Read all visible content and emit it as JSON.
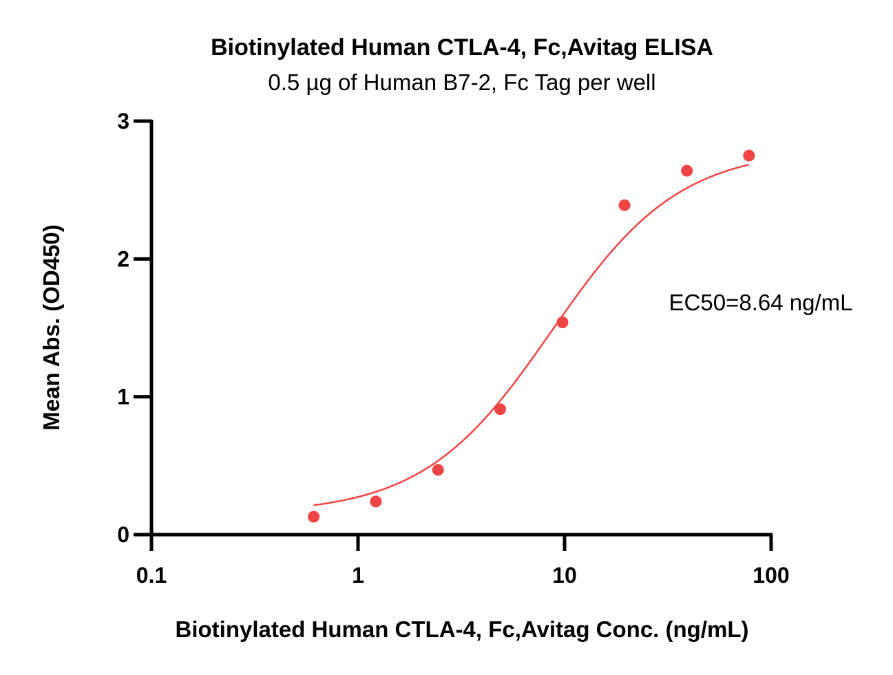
{
  "chart_data": {
    "type": "scatter",
    "title": "Biotinylated Human CTLA-4, Fc,Avitag ELISA",
    "subtitle": "0.5 µg of Human B7-2, Fc Tag per well",
    "xlabel": "Biotinylated Human CTLA-4, Fc,Avitag Conc. (ng/mL)",
    "ylabel": "Mean Abs. (OD450)",
    "x_scale": "log",
    "xlim": [
      0.1,
      100
    ],
    "ylim": [
      0,
      3
    ],
    "x_ticks": [
      0.1,
      1,
      10,
      100
    ],
    "x_tick_labels": [
      "0.1",
      "1",
      "10",
      "100"
    ],
    "y_ticks": [
      0,
      1,
      2,
      3
    ],
    "y_tick_labels": [
      "0",
      "1",
      "2",
      "3"
    ],
    "grid": false,
    "colors": {
      "series": "#ef4444",
      "axis": "#000000"
    },
    "series": [
      {
        "x": [
          0.61,
          1.22,
          2.44,
          4.88,
          9.77,
          19.5,
          39.1,
          78.1
        ],
        "y": [
          0.13,
          0.24,
          0.47,
          0.91,
          1.54,
          2.39,
          2.64,
          2.75
        ]
      }
    ],
    "fit": {
      "type": "4PL",
      "bottom": 0.15,
      "top": 2.8,
      "ec50": 8.64,
      "hill": 1.4
    },
    "annotation": "EC50=8.64 ng/mL"
  }
}
